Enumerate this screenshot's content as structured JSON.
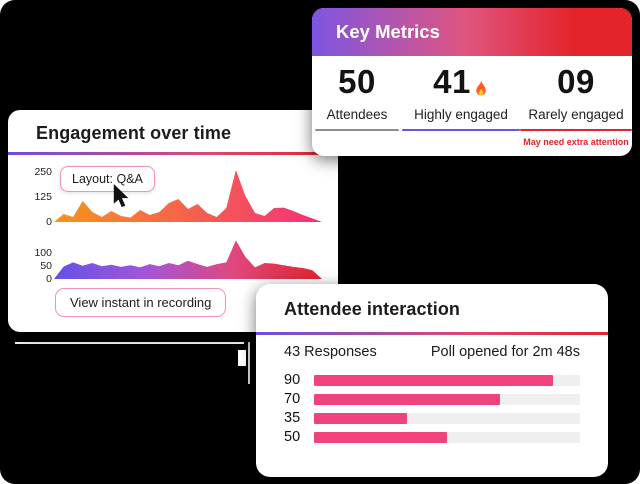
{
  "colors": {
    "canvas_bg": "#000000",
    "card_bg": "#ffffff",
    "header_gradient": [
      "#7D55E2",
      "#E0557F",
      "#E3242B"
    ],
    "divider_gradient": [
      "#6C4EE0",
      "#D94A71",
      "#E3242B"
    ],
    "pink_border": "#F193B0",
    "alert_red": "#E3242B"
  },
  "key_metrics": {
    "title": "Key Metrics",
    "stats": [
      {
        "value": "50",
        "label": "Attendees",
        "underline_color": "#8E8E8E"
      },
      {
        "value": "41",
        "label": "Highly engaged",
        "underline_color": "#6456E8",
        "icon": "fire-icon"
      },
      {
        "value": "09",
        "label": "Rarely engaged",
        "underline_color": "#E3242B",
        "note": "May need extra attention"
      }
    ]
  },
  "engagement": {
    "title": "Engagement over time",
    "tooltip_label": "Layout: Q&A",
    "button_label": "View instant in recording"
  },
  "attendee": {
    "title": "Attendee interaction",
    "responses_label": "43 Responses",
    "poll_status": "Poll opened for 2m 48s"
  },
  "chart_data": [
    {
      "type": "area",
      "name": "engagement-over-time-top",
      "title": "Engagement over time (upper series)",
      "ticks": [
        "250",
        "125",
        "0"
      ],
      "ylim": [
        0,
        260
      ],
      "xlabel": "",
      "ylabel": "",
      "grid": false,
      "legend": false,
      "values": [
        0,
        40,
        25,
        105,
        50,
        25,
        55,
        30,
        22,
        60,
        35,
        50,
        95,
        115,
        65,
        90,
        45,
        25,
        70,
        260,
        130,
        45,
        30,
        70,
        72,
        55,
        35,
        18,
        0
      ],
      "gradient": [
        "#F7941D",
        "#F2317B"
      ]
    },
    {
      "type": "area",
      "name": "engagement-over-time-bottom",
      "title": "Engagement over time (lower series)",
      "ticks": [
        "100",
        "50",
        "0"
      ],
      "ylim": [
        0,
        145
      ],
      "xlabel": "",
      "ylabel": "",
      "grid": false,
      "legend": false,
      "values": [
        0,
        45,
        60,
        48,
        58,
        46,
        52,
        44,
        50,
        42,
        54,
        46,
        58,
        50,
        66,
        54,
        44,
        54,
        60,
        140,
        80,
        42,
        58,
        56,
        50,
        44,
        40,
        32,
        0
      ],
      "gradient": [
        "#6352E8",
        "#A155D9",
        "#E0487F",
        "#E3242B"
      ]
    },
    {
      "type": "bar",
      "name": "attendee-poll-results",
      "title": "Attendee interaction poll",
      "orientation": "horizontal",
      "categories": [
        "90",
        "70",
        "35",
        "50"
      ],
      "values": [
        90,
        70,
        35,
        50
      ],
      "max": 100,
      "bar_color": "#F0437B",
      "track_color": "#EFEFEF"
    }
  ]
}
